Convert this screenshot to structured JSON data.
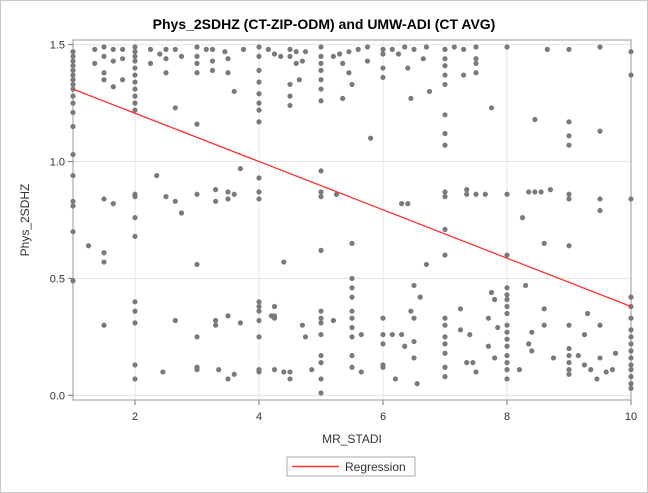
{
  "chart_data": {
    "type": "scatter",
    "title": "Phys_2SDHZ (CT-ZIP-ODM) and UMW-ADI (CT AVG)",
    "xlabel": "MR_STADI",
    "ylabel": "Phys_2SDHZ",
    "xlim": [
      1,
      10
    ],
    "ylim": [
      -0.02,
      1.52
    ],
    "xticks": [
      "2",
      "4",
      "6",
      "8",
      "10"
    ],
    "yticks": [
      "0.0",
      "0.5",
      "1.0",
      "1.5"
    ],
    "grid": true,
    "legend": {
      "position": "bottom-center",
      "entries": [
        "Regression"
      ]
    },
    "colors": {
      "points": "#7a7a7a",
      "regression": "#ff3333",
      "grid": "#e6e6e6"
    },
    "regression": {
      "x": [
        1,
        10
      ],
      "y": [
        1.31,
        0.38
      ]
    },
    "points": [
      [
        1,
        1.47
      ],
      [
        1,
        1.45
      ],
      [
        1,
        1.43
      ],
      [
        1,
        1.41
      ],
      [
        1,
        1.39
      ],
      [
        1,
        1.37
      ],
      [
        1,
        1.35
      ],
      [
        1,
        1.33
      ],
      [
        1,
        1.31
      ],
      [
        1,
        1.28
      ],
      [
        1,
        1.25
      ],
      [
        1,
        1.21
      ],
      [
        1,
        1.15
      ],
      [
        1,
        1.03
      ],
      [
        1,
        0.94
      ],
      [
        1,
        0.83
      ],
      [
        1,
        0.81
      ],
      [
        1,
        0.7
      ],
      [
        1,
        0.49
      ],
      [
        1.25,
        0.64
      ],
      [
        1.35,
        1.48
      ],
      [
        1.35,
        1.42
      ],
      [
        1.5,
        1.49
      ],
      [
        1.5,
        1.45
      ],
      [
        1.5,
        1.38
      ],
      [
        1.5,
        1.35
      ],
      [
        1.5,
        0.84
      ],
      [
        1.5,
        0.61
      ],
      [
        1.5,
        0.57
      ],
      [
        1.5,
        0.3
      ],
      [
        1.65,
        1.48
      ],
      [
        1.65,
        1.43
      ],
      [
        1.65,
        1.32
      ],
      [
        1.65,
        0.82
      ],
      [
        1.8,
        1.48
      ],
      [
        1.8,
        1.44
      ],
      [
        1.8,
        1.35
      ],
      [
        2,
        1.49
      ],
      [
        2,
        1.47
      ],
      [
        2,
        1.45
      ],
      [
        2,
        1.43
      ],
      [
        2,
        1.4
      ],
      [
        2,
        1.37
      ],
      [
        2,
        1.34
      ],
      [
        2,
        1.31
      ],
      [
        2,
        1.28
      ],
      [
        2,
        1.25
      ],
      [
        2,
        1.22
      ],
      [
        2,
        0.86
      ],
      [
        2,
        0.85
      ],
      [
        2,
        0.76
      ],
      [
        2,
        0.68
      ],
      [
        2,
        0.4
      ],
      [
        2,
        0.36
      ],
      [
        2,
        0.31
      ],
      [
        2,
        0.13
      ],
      [
        2,
        0.07
      ],
      [
        2.25,
        1.48
      ],
      [
        2.25,
        1.42
      ],
      [
        2.35,
        0.94
      ],
      [
        2.4,
        1.46
      ],
      [
        2.45,
        0.1
      ],
      [
        2.5,
        1.48
      ],
      [
        2.5,
        1.44
      ],
      [
        2.5,
        1.38
      ],
      [
        2.5,
        0.85
      ],
      [
        2.65,
        1.48
      ],
      [
        2.65,
        1.23
      ],
      [
        2.65,
        0.83
      ],
      [
        2.65,
        0.32
      ],
      [
        2.75,
        1.45
      ],
      [
        2.75,
        0.78
      ],
      [
        3,
        1.49
      ],
      [
        3,
        1.45
      ],
      [
        3,
        1.42
      ],
      [
        3,
        1.38
      ],
      [
        3,
        1.16
      ],
      [
        3,
        0.86
      ],
      [
        3,
        0.56
      ],
      [
        3,
        0.25
      ],
      [
        3,
        0.12
      ],
      [
        3,
        0.11
      ],
      [
        3.15,
        1.48
      ],
      [
        3.25,
        1.48
      ],
      [
        3.25,
        1.43
      ],
      [
        3.25,
        1.39
      ],
      [
        3.3,
        0.88
      ],
      [
        3.3,
        0.83
      ],
      [
        3.3,
        0.32
      ],
      [
        3.3,
        0.3
      ],
      [
        3.35,
        0.11
      ],
      [
        3.45,
        1.47
      ],
      [
        3.5,
        1.44
      ],
      [
        3.5,
        1.38
      ],
      [
        3.5,
        0.87
      ],
      [
        3.5,
        0.84
      ],
      [
        3.5,
        0.34
      ],
      [
        3.5,
        0.07
      ],
      [
        3.6,
        1.3
      ],
      [
        3.6,
        0.86
      ],
      [
        3.6,
        0.09
      ],
      [
        3.7,
        0.97
      ],
      [
        3.7,
        0.31
      ],
      [
        3.75,
        1.48
      ],
      [
        4,
        1.49
      ],
      [
        4,
        1.45
      ],
      [
        4,
        1.39
      ],
      [
        4,
        1.34
      ],
      [
        4,
        1.29
      ],
      [
        4,
        1.25
      ],
      [
        4,
        1.22
      ],
      [
        4,
        1.17
      ],
      [
        4,
        0.93
      ],
      [
        4,
        0.87
      ],
      [
        4,
        0.84
      ],
      [
        4,
        0.4
      ],
      [
        4,
        0.38
      ],
      [
        4,
        0.36
      ],
      [
        4,
        0.32
      ],
      [
        4,
        0.25
      ],
      [
        4,
        0.11
      ],
      [
        4,
        0.1
      ],
      [
        4.15,
        1.48
      ],
      [
        4.2,
        0.34
      ],
      [
        4.25,
        1.46
      ],
      [
        4.25,
        0.38
      ],
      [
        4.25,
        0.34
      ],
      [
        4.25,
        0.33
      ],
      [
        4.25,
        0.11
      ],
      [
        4.35,
        1.45
      ],
      [
        4.4,
        0.57
      ],
      [
        4.4,
        0.1
      ],
      [
        4.5,
        1.48
      ],
      [
        4.5,
        1.45
      ],
      [
        4.5,
        1.33
      ],
      [
        4.5,
        1.28
      ],
      [
        4.5,
        1.24
      ],
      [
        4.5,
        0.1
      ],
      [
        4.5,
        0.07
      ],
      [
        4.6,
        1.47
      ],
      [
        4.6,
        1.42
      ],
      [
        4.65,
        1.35
      ],
      [
        4.7,
        1.43
      ],
      [
        4.7,
        0.3
      ],
      [
        4.75,
        1.47
      ],
      [
        4.75,
        0.25
      ],
      [
        4.85,
        0.11
      ],
      [
        5,
        1.49
      ],
      [
        5,
        1.45
      ],
      [
        5,
        1.42
      ],
      [
        5,
        1.39
      ],
      [
        5,
        1.35
      ],
      [
        5,
        1.31
      ],
      [
        5,
        1.26
      ],
      [
        5,
        0.96
      ],
      [
        5,
        0.87
      ],
      [
        5,
        0.85
      ],
      [
        5,
        0.62
      ],
      [
        5,
        0.36
      ],
      [
        5,
        0.33
      ],
      [
        5,
        0.31
      ],
      [
        5,
        0.26
      ],
      [
        5,
        0.17
      ],
      [
        5,
        0.14
      ],
      [
        5,
        0.07
      ],
      [
        5,
        0.01
      ],
      [
        5.2,
        1.45
      ],
      [
        5.2,
        0.32
      ],
      [
        5.25,
        0.86
      ],
      [
        5.3,
        1.46
      ],
      [
        5.35,
        1.42
      ],
      [
        5.35,
        1.27
      ],
      [
        5.45,
        1.47
      ],
      [
        5.45,
        1.38
      ],
      [
        5.5,
        1.33
      ],
      [
        5.5,
        0.65
      ],
      [
        5.5,
        0.5
      ],
      [
        5.5,
        0.46
      ],
      [
        5.5,
        0.42
      ],
      [
        5.5,
        0.36
      ],
      [
        5.5,
        0.33
      ],
      [
        5.5,
        0.29
      ],
      [
        5.5,
        0.25
      ],
      [
        5.5,
        0.17
      ],
      [
        5.5,
        0.12
      ],
      [
        5.6,
        1.48
      ],
      [
        5.65,
        0.26
      ],
      [
        5.65,
        0.1
      ],
      [
        5.75,
        1.49
      ],
      [
        5.75,
        1.43
      ],
      [
        5.8,
        1.1
      ],
      [
        6,
        1.48
      ],
      [
        6,
        1.46
      ],
      [
        6,
        1.4
      ],
      [
        6,
        1.36
      ],
      [
        6,
        0.33
      ],
      [
        6,
        0.26
      ],
      [
        6,
        0.22
      ],
      [
        6,
        0.13
      ],
      [
        6,
        0.12
      ],
      [
        6.15,
        1.48
      ],
      [
        6.15,
        0.26
      ],
      [
        6.2,
        0.07
      ],
      [
        6.25,
        1.46
      ],
      [
        6.3,
        0.82
      ],
      [
        6.3,
        0.26
      ],
      [
        6.35,
        1.49
      ],
      [
        6.35,
        0.21
      ],
      [
        6.4,
        1.4
      ],
      [
        6.4,
        0.82
      ],
      [
        6.45,
        1.27
      ],
      [
        6.45,
        0.36
      ],
      [
        6.5,
        1.48
      ],
      [
        6.5,
        0.47
      ],
      [
        6.5,
        0.33
      ],
      [
        6.5,
        0.23
      ],
      [
        6.5,
        0.16
      ],
      [
        6.55,
        0.05
      ],
      [
        6.6,
        0.42
      ],
      [
        6.65,
        1.44
      ],
      [
        6.7,
        1.49
      ],
      [
        6.7,
        0.56
      ],
      [
        6.75,
        1.3
      ],
      [
        7,
        1.48
      ],
      [
        7,
        1.44
      ],
      [
        7,
        1.41
      ],
      [
        7,
        1.37
      ],
      [
        7,
        1.33
      ],
      [
        7,
        1.2
      ],
      [
        7,
        1.12
      ],
      [
        7,
        1.07
      ],
      [
        7,
        0.87
      ],
      [
        7,
        0.85
      ],
      [
        7,
        0.71
      ],
      [
        7,
        0.6
      ],
      [
        7,
        0.33
      ],
      [
        7,
        0.3
      ],
      [
        7,
        0.25
      ],
      [
        7,
        0.22
      ],
      [
        7,
        0.18
      ],
      [
        7,
        0.12
      ],
      [
        7,
        0.08
      ],
      [
        7.15,
        1.49
      ],
      [
        7.25,
        0.37
      ],
      [
        7.25,
        0.28
      ],
      [
        7.3,
        1.48
      ],
      [
        7.3,
        1.37
      ],
      [
        7.35,
        0.88
      ],
      [
        7.35,
        0.86
      ],
      [
        7.35,
        0.14
      ],
      [
        7.4,
        0.26
      ],
      [
        7.45,
        0.14
      ],
      [
        7.5,
        1.49
      ],
      [
        7.5,
        1.44
      ],
      [
        7.5,
        1.42
      ],
      [
        7.5,
        1.38
      ],
      [
        7.5,
        0.86
      ],
      [
        7.5,
        0.1
      ],
      [
        7.65,
        0.86
      ],
      [
        7.7,
        0.33
      ],
      [
        7.7,
        0.21
      ],
      [
        7.75,
        1.23
      ],
      [
        7.75,
        0.44
      ],
      [
        7.8,
        0.41
      ],
      [
        7.8,
        0.16
      ],
      [
        7.85,
        0.29
      ],
      [
        8,
        1.49
      ],
      [
        8,
        0.86
      ],
      [
        8,
        0.6
      ],
      [
        8,
        0.46
      ],
      [
        8,
        0.43
      ],
      [
        8,
        0.41
      ],
      [
        8,
        0.38
      ],
      [
        8,
        0.35
      ],
      [
        8,
        0.3
      ],
      [
        8,
        0.27
      ],
      [
        8,
        0.24
      ],
      [
        8,
        0.21
      ],
      [
        8,
        0.17
      ],
      [
        8,
        0.14
      ],
      [
        8,
        0.11
      ],
      [
        8,
        0.07
      ],
      [
        8.2,
        0.11
      ],
      [
        8.25,
        0.76
      ],
      [
        8.3,
        0.47
      ],
      [
        8.35,
        0.87
      ],
      [
        8.35,
        0.22
      ],
      [
        8.4,
        0.27
      ],
      [
        8.4,
        0.19
      ],
      [
        8.45,
        0.87
      ],
      [
        8.45,
        1.18
      ],
      [
        8.55,
        0.87
      ],
      [
        8.6,
        0.65
      ],
      [
        8.6,
        0.37
      ],
      [
        8.6,
        0.3
      ],
      [
        8.65,
        1.48
      ],
      [
        8.7,
        0.88
      ],
      [
        8.75,
        0.16
      ],
      [
        9,
        1.48
      ],
      [
        9,
        1.17
      ],
      [
        9,
        1.11
      ],
      [
        9,
        1.07
      ],
      [
        9,
        0.86
      ],
      [
        9,
        0.84
      ],
      [
        9,
        0.64
      ],
      [
        9,
        0.3
      ],
      [
        9,
        0.2
      ],
      [
        9,
        0.17
      ],
      [
        9,
        0.14
      ],
      [
        9,
        0.11
      ],
      [
        9,
        0.09
      ],
      [
        9.15,
        0.17
      ],
      [
        9.25,
        0.26
      ],
      [
        9.25,
        0.13
      ],
      [
        9.3,
        0.35
      ],
      [
        9.35,
        0.11
      ],
      [
        9.45,
        0.07
      ],
      [
        9.5,
        1.49
      ],
      [
        9.5,
        1.13
      ],
      [
        9.5,
        0.84
      ],
      [
        9.5,
        0.79
      ],
      [
        9.5,
        0.3
      ],
      [
        9.5,
        0.16
      ],
      [
        9.6,
        0.1
      ],
      [
        9.7,
        0.11
      ],
      [
        9.75,
        0.18
      ],
      [
        10,
        1.47
      ],
      [
        10,
        1.37
      ],
      [
        10,
        0.84
      ],
      [
        10,
        0.42
      ],
      [
        10,
        0.38
      ],
      [
        10,
        0.33
      ],
      [
        10,
        0.28
      ],
      [
        10,
        0.25
      ],
      [
        10,
        0.22
      ],
      [
        10,
        0.19
      ],
      [
        10,
        0.16
      ],
      [
        10,
        0.13
      ],
      [
        10,
        0.11
      ],
      [
        10,
        0.08
      ],
      [
        10,
        0.05
      ],
      [
        10,
        0.03
      ]
    ]
  }
}
